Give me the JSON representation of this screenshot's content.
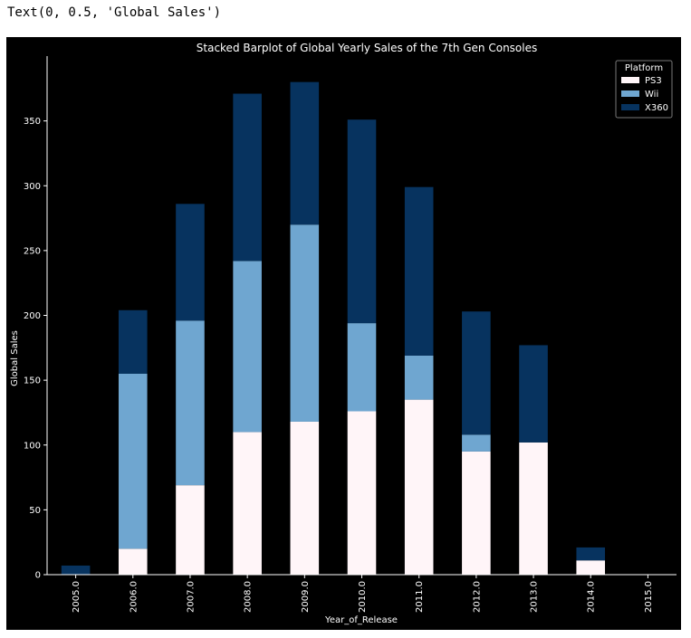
{
  "cell_output": "Text(0, 0.5, 'Global Sales')",
  "colors": {
    "background": "#000000",
    "axes": "#ffffff",
    "text": "#ffffff",
    "legend_bg": "#000000",
    "legend_edge": "#777777"
  },
  "chart_data": {
    "type": "bar",
    "stacked": true,
    "title": "Stacked Barplot of Global Yearly Sales of the 7th Gen Consoles",
    "xlabel": "Year_of_Release",
    "ylabel": "Global Sales",
    "categories": [
      "2005.0",
      "2006.0",
      "2007.0",
      "2008.0",
      "2009.0",
      "2010.0",
      "2011.0",
      "2012.0",
      "2013.0",
      "2014.0",
      "2015.0"
    ],
    "ylim": [
      0,
      400
    ],
    "yticks": [
      0,
      50,
      100,
      150,
      200,
      250,
      300,
      350
    ],
    "grid": false,
    "legend": {
      "title": "Platform",
      "position": "top-right"
    },
    "series": [
      {
        "name": "PS3",
        "color": "#fff5f8",
        "values": [
          0,
          20,
          69,
          110,
          118,
          126,
          135,
          95,
          102,
          11,
          0
        ]
      },
      {
        "name": "Wii",
        "color": "#6fa6d0",
        "values": [
          0,
          135,
          127,
          132,
          152,
          68,
          34,
          13,
          0,
          0,
          0
        ]
      },
      {
        "name": "X360",
        "color": "#07335f",
        "values": [
          7,
          49,
          90,
          129,
          110,
          157,
          130,
          95,
          75,
          10,
          0
        ]
      }
    ]
  }
}
